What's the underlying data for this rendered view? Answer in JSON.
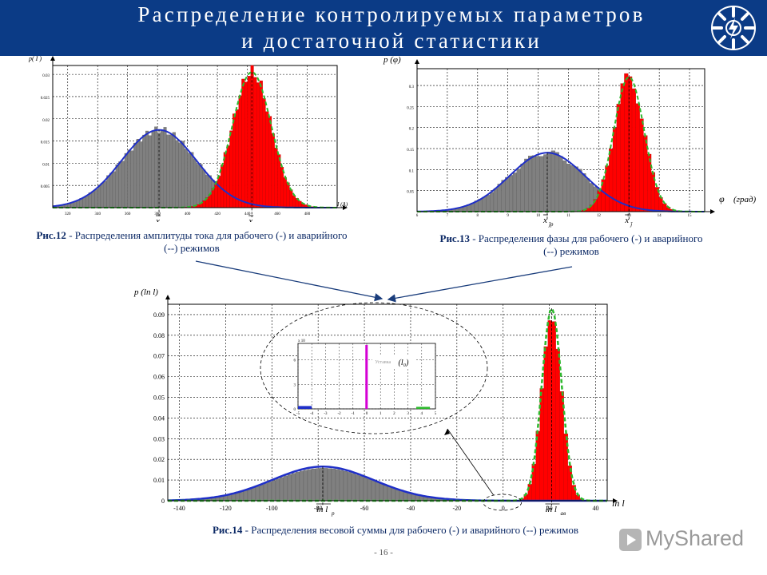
{
  "header": {
    "title_line1": "Распределение контролируемых параметров",
    "title_line2": "и достаточной статистики",
    "logo": "power-company-logo-icon",
    "bg_color": "#0b3b86"
  },
  "colors": {
    "healthy_hist": "#808080",
    "faulty_hist": "#ff0000",
    "healthy_fit": "#1f2fc8",
    "faulty_fit": "#2db82d"
  },
  "chart_data": [
    {
      "id": "fig12",
      "type": "bar",
      "ylabel": "p( I )",
      "xlabel": "I (A)",
      "xlim": [
        310,
        500
      ],
      "ylim": [
        0,
        0.032
      ],
      "xticks": [
        320,
        340,
        360,
        380,
        400,
        420,
        440,
        460,
        480
      ],
      "yticks": [
        0.005,
        0.01,
        0.015,
        0.02,
        0.025,
        0.03
      ],
      "series": [
        {
          "dist": "normal",
          "mean": 381,
          "sd": 25,
          "peak": 0.0175
        },
        {
          "dist": "normal",
          "mean": 443,
          "sd": 13,
          "peak": 0.0305
        }
      ],
      "annotations": {
        "mean1": "x",
        "mean1_sub": "ĵp",
        "mean2": "x",
        "mean2_sub": "ĵав"
      },
      "caption_bold": "Рис.12",
      "caption": " - Распределения амплитуды тока для рабочего (-) и аварийного (--) режимов"
    },
    {
      "id": "fig13",
      "type": "bar",
      "ylabel": "p (φ)",
      "xlabel": "φ  (град)",
      "xlabel_prefix": "φ",
      "xlabel_unit": "(град)",
      "xlim": [
        6,
        15.5
      ],
      "ylim": [
        0,
        0.34
      ],
      "xticks": [
        6,
        7,
        8,
        9,
        10,
        11,
        12,
        13,
        14,
        15
      ],
      "yticks": [
        0.05,
        0.1,
        0.15,
        0.2,
        0.25,
        0.3
      ],
      "series": [
        {
          "dist": "normal",
          "mean": 10.3,
          "sd": 1.25,
          "peak": 0.14
        },
        {
          "dist": "normal",
          "mean": 13,
          "sd": 0.5,
          "peak": 0.32
        }
      ],
      "annotations": {
        "mean1": "x",
        "mean1_sub": "ĵp",
        "mean2": "x",
        "mean2_sub": "ĵ"
      },
      "caption_bold": "Рис.13",
      "caption": " - Распределения фазы для рабочего (-) и аварийного (--) режимов"
    },
    {
      "id": "fig14",
      "type": "bar",
      "ylabel": "p (ln l)",
      "xlabel": "ln l",
      "xlim": [
        -145,
        45
      ],
      "ylim": [
        0,
        0.095
      ],
      "xticks": [
        -140,
        -120,
        -100,
        -80,
        -60,
        -40,
        -20,
        0,
        20,
        40
      ],
      "yticks": [
        0,
        0.01,
        0.02,
        0.03,
        0.04,
        0.05,
        0.06,
        0.07,
        0.08,
        0.09
      ],
      "series": [
        {
          "dist": "normal",
          "mean": -78,
          "sd": 22,
          "peak": 0.0165
        },
        {
          "dist": "normal",
          "mean": 21,
          "sd": 4.3,
          "peak": 0.093
        }
      ],
      "annotations": {
        "mean1": "ln l",
        "mean1_sub": "p",
        "mean2": "ln l",
        "mean2_sub": "ав"
      },
      "inset": {
        "scale_label": "x 10",
        "yticks": [
          0,
          3,
          6
        ],
        "xticks": [
          -5,
          -4,
          -3,
          -2,
          -1,
          0,
          1,
          2,
          3,
          4,
          5
        ],
        "label": "Уставка",
        "threshold": "(l₀)"
      },
      "caption_bold": "Рис.14",
      "caption": " - Распределения весовой суммы для рабочего (-) и аварийного (--) режимов"
    }
  ],
  "footer": {
    "page_number": "- 16 -",
    "watermark": "MyShared"
  }
}
